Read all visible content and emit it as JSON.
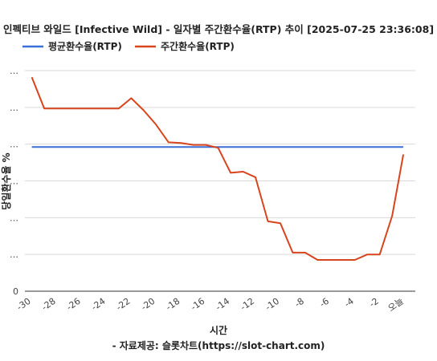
{
  "chart_data": {
    "type": "line",
    "title": "인펙티브 와일드 [Infective Wild] - 일자별 주간환수율(RTP) 추이 [2025-07-25 23:36:08]",
    "xlabel": "시간",
    "ylabel": "당일환수율 %",
    "source": "- 자료제공: 슬롯차트(https://slot-chart.com)",
    "x_tick_labels": [
      "-30",
      "-28",
      "-26",
      "-24",
      "-22",
      "-20",
      "-18",
      "-16",
      "-14",
      "-12",
      "-10",
      "-8",
      "-6",
      "-4",
      "-2",
      "오늘"
    ],
    "x_tick_values": [
      -30,
      -28,
      -26,
      -24,
      -22,
      -20,
      -18,
      -16,
      -14,
      -12,
      -10,
      -8,
      -6,
      -4,
      -2,
      0
    ],
    "y_tick_labels": [
      "0",
      "…",
      "…",
      "…",
      "…",
      "…",
      "…"
    ],
    "y_tick_values": [
      0,
      1,
      2,
      3,
      4,
      5,
      6
    ],
    "xlim": [
      -30,
      0
    ],
    "ylim": [
      0,
      6
    ],
    "grid": true,
    "legend_position": "top-left",
    "series": [
      {
        "name": "평균환수율(RTP)",
        "color": "#3a6fd8",
        "x": [
          -29.7,
          0.2
        ],
        "y": [
          3.92,
          3.92
        ]
      },
      {
        "name": "주간환수율(RTP)",
        "color": "#d8441c",
        "x": [
          -29.7,
          -28.7,
          -27.7,
          -26.7,
          -25.7,
          -24.7,
          -23.7,
          -22.7,
          -21.7,
          -20.7,
          -19.7,
          -18.7,
          -17.7,
          -16.7,
          -15.7,
          -14.7,
          -13.7,
          -12.7,
          -11.7,
          -10.7,
          -9.7,
          -8.7,
          -7.7,
          -6.7,
          -5.7,
          -4.7,
          -3.7,
          -2.7,
          -1.7,
          -0.7,
          0.2
        ],
        "y": [
          5.82,
          4.97,
          4.97,
          4.97,
          4.97,
          4.97,
          4.97,
          4.97,
          5.25,
          4.92,
          4.53,
          4.05,
          4.03,
          3.98,
          3.98,
          3.9,
          3.22,
          3.25,
          3.1,
          1.9,
          1.85,
          1.05,
          1.05,
          0.85,
          0.85,
          0.85,
          0.85,
          1.0,
          1.0,
          2.05,
          3.72
        ]
      }
    ]
  }
}
